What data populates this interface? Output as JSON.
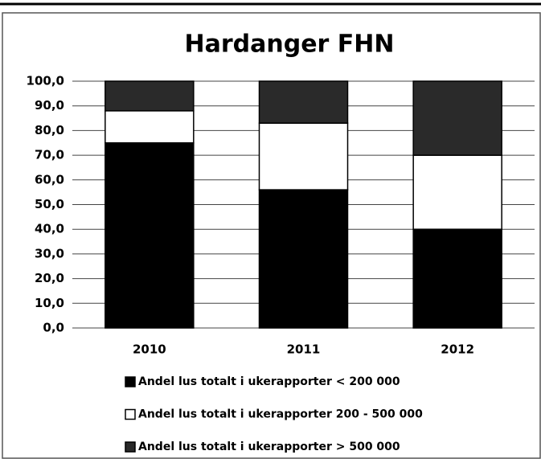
{
  "chart_data": {
    "type": "stacked_bar",
    "title": "Hardanger FHN",
    "categories": [
      "2010",
      "2011",
      "2012"
    ],
    "series": [
      {
        "name": "Andel lus totalt i ukerapporter < 200 000",
        "color": "#000000",
        "values": [
          75,
          56,
          40
        ]
      },
      {
        "name": "Andel lus totalt i ukerapporter 200 - 500 000",
        "color": "#ffffff",
        "values": [
          13,
          27,
          30
        ]
      },
      {
        "name": "Andel lus totalt i ukerapporter > 500 000",
        "color": "#2a2a2a",
        "values": [
          12,
          17,
          30
        ]
      }
    ],
    "ylim": [
      0,
      100
    ],
    "yticks": [
      {
        "value": 0,
        "label": "0,0"
      },
      {
        "value": 10,
        "label": "10,0"
      },
      {
        "value": 20,
        "label": "20,0"
      },
      {
        "value": 30,
        "label": "30,0"
      },
      {
        "value": 40,
        "label": "40,0"
      },
      {
        "value": 50,
        "label": "50,0"
      },
      {
        "value": 60,
        "label": "60,0"
      },
      {
        "value": 70,
        "label": "70,0"
      },
      {
        "value": 80,
        "label": "80,0"
      },
      {
        "value": 90,
        "label": "90,0"
      },
      {
        "value": 100,
        "label": "100,0"
      }
    ],
    "grid": true
  }
}
